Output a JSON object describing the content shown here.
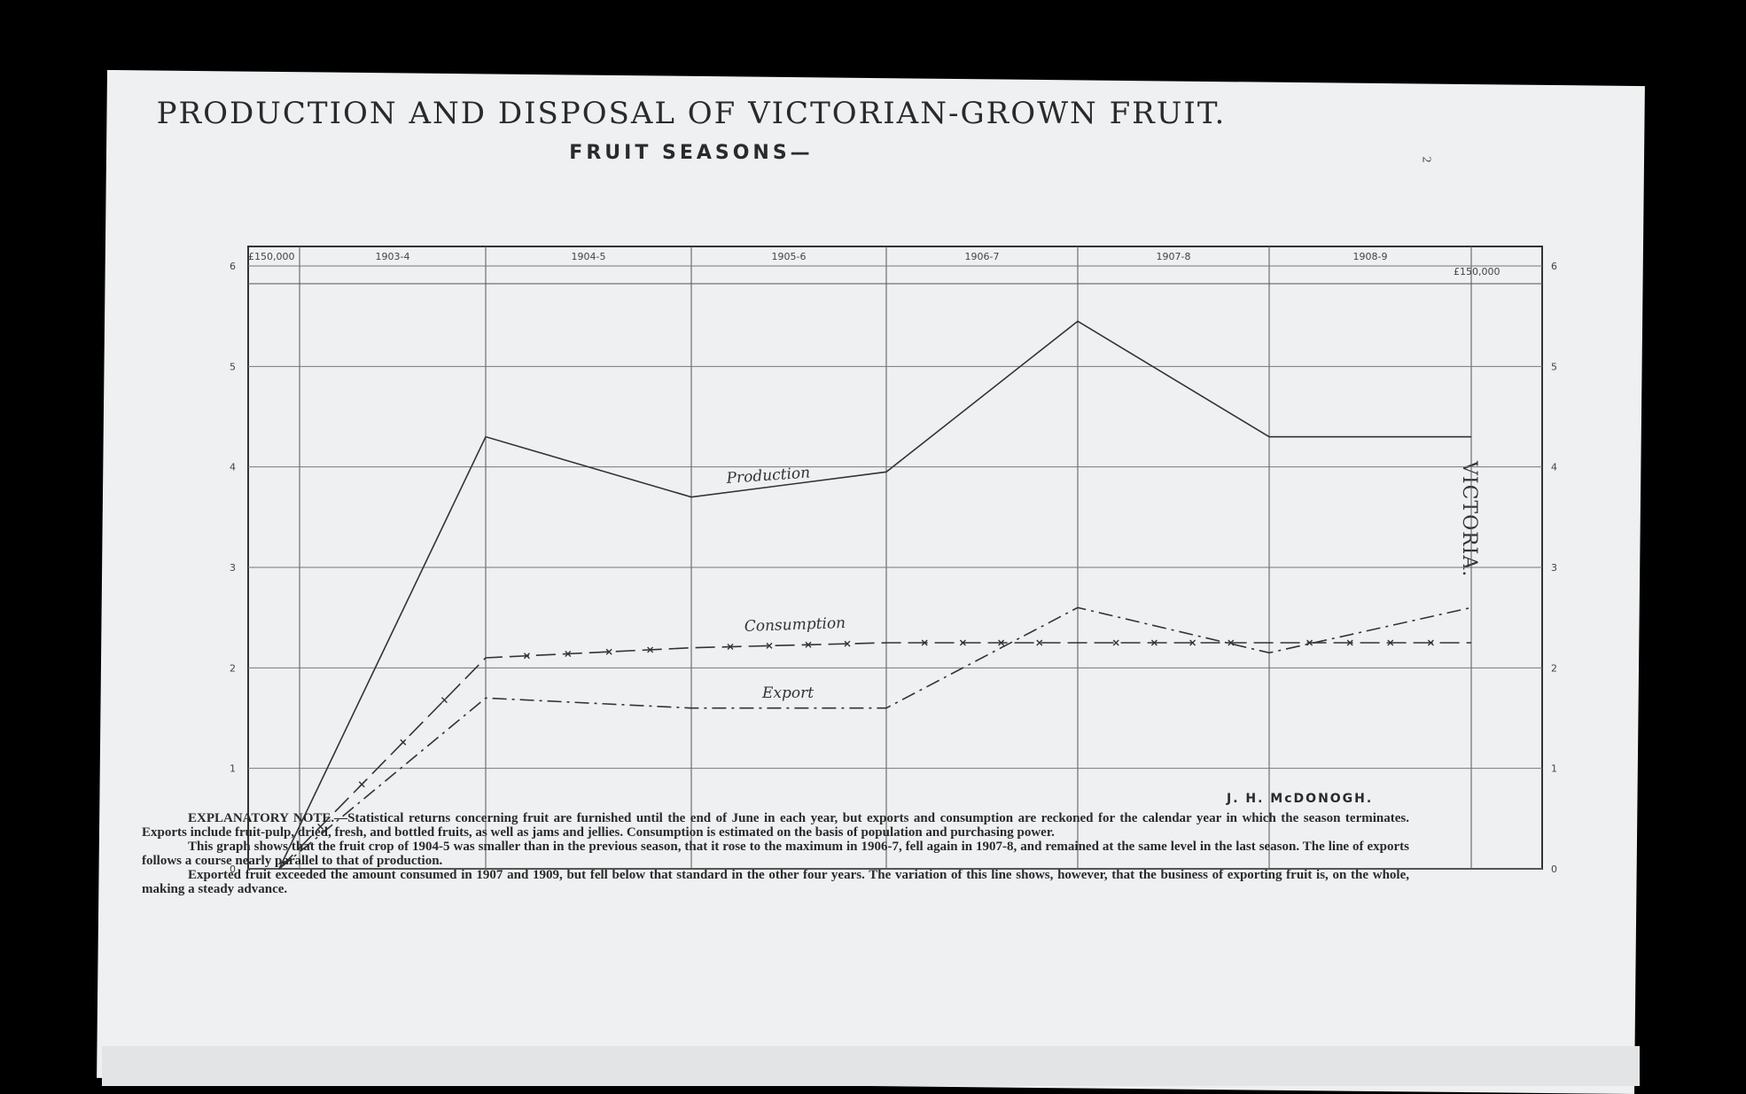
{
  "chart_data": {
    "type": "line",
    "title": "PRODUCTION AND DISPOSAL OF VICTORIAN-GROWN FRUIT.",
    "subtitle": "FRUIT SEASONS—",
    "y_unit_label": "£150,000",
    "ylim": [
      0,
      6
    ],
    "yticks": [
      "0",
      "1",
      "2",
      "3",
      "4",
      "5",
      "6"
    ],
    "categories": [
      "",
      "1903-4",
      "1904-5",
      "1905-6",
      "1906-7",
      "1907-8",
      "1908-9"
    ],
    "series": [
      {
        "name": "Production",
        "values": [
          0,
          4.3,
          3.7,
          3.95,
          5.45,
          4.3,
          4.3
        ]
      },
      {
        "name": "Consumption",
        "values": [
          0,
          2.1,
          2.2,
          2.25,
          2.25,
          2.25,
          2.25
        ]
      },
      {
        "name": "Export",
        "values": [
          0,
          1.7,
          1.6,
          1.6,
          2.6,
          2.15,
          2.6
        ]
      }
    ],
    "grid": true
  },
  "side_label": "VICTORIA.",
  "page_number": "2",
  "signature": "J. H. McDONOGH.",
  "note": {
    "lead": "EXPLANATORY NOTE.—",
    "p1": "Statistical returns concerning fruit are furnished until the end of June in each year, but exports and consumption are reckoned for the calendar year in which the season terminates. Exports include fruit-pulp, dried, fresh, and bottled fruits, as well as jams and jellies. Consumption is estimated on the basis of population and purchasing power.",
    "p2": "This graph shows that the fruit crop of 1904-5 was smaller than in the previous season, that it rose to the maximum in 1906-7, fell again in 1907-8, and remained at the same level in the last season. The line of exports follows a course nearly parallel to that of production.",
    "p3": "Exported fruit exceeded the amount consumed in 1907 and 1909, but fell below that standard in the other four years. The variation of this line shows, however, that the business of exporting fruit is, on the whole, making a steady advance."
  }
}
